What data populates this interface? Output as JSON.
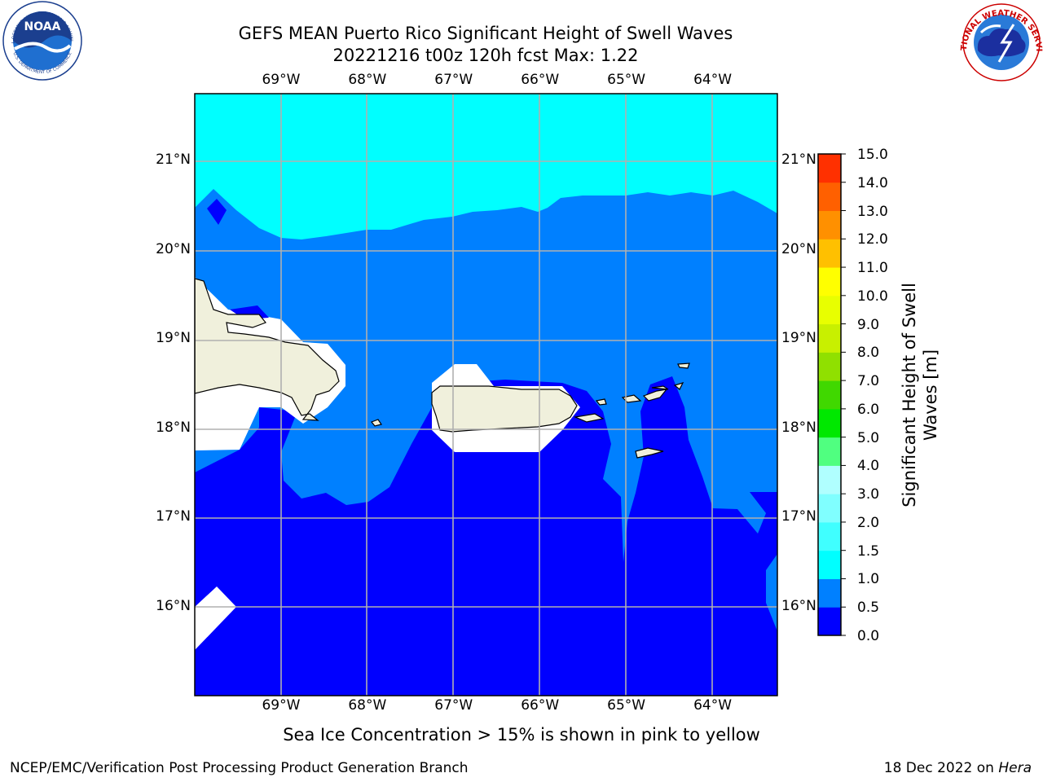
{
  "title": {
    "line1": "GEFS MEAN Puerto Rico Significant Height of Swell Waves",
    "line2": "20221216 t00z 120h fcst   Max: 1.22"
  },
  "axes": {
    "lon_labels": [
      "69°W",
      "68°W",
      "67°W",
      "66°W",
      "65°W",
      "64°W"
    ],
    "lat_labels": [
      "21°N",
      "20°N",
      "19°N",
      "18°N",
      "17°N",
      "16°N"
    ],
    "lon_values": [
      -69,
      -68,
      -67,
      -66,
      -65,
      -64
    ],
    "lat_values": [
      21,
      20,
      19,
      18,
      17,
      16
    ],
    "lon_range": [
      -70.0,
      -63.25
    ],
    "lat_range": [
      15.0,
      21.75
    ],
    "grid": true
  },
  "colorbar": {
    "title": "Significant Height of Swell Waves [m]",
    "title_line1": "Significant Height of Swell",
    "title_line2": "Waves [m]",
    "tick_labels": [
      "0.0",
      "0.5",
      "1.0",
      "1.5",
      "2.0",
      "3.0",
      "4.0",
      "5.0",
      "6.0",
      "7.0",
      "8.0",
      "9.0",
      "10.0",
      "11.0",
      "12.0",
      "13.0",
      "14.0",
      "15.0"
    ],
    "colors": [
      "#0000ff",
      "#0080ff",
      "#00ffff",
      "#40ffff",
      "#80ffff",
      "#b0ffff",
      "#50ff80",
      "#00e800",
      "#40d800",
      "#90e000",
      "#c8f000",
      "#e8ff00",
      "#ffff00",
      "#ffc000",
      "#ff9000",
      "#ff6000",
      "#ff3000",
      "#ff0000"
    ]
  },
  "legend_colors": {
    "swell_0_0_5": "#0000ff",
    "swell_0_5_1_0": "#0080ff",
    "swell_1_0_1_5": "#00ffff",
    "land": "#f0f0dc",
    "no_data": "#ffffff"
  },
  "note": "Sea Ice Concentration > 15% is shown in pink to yellow",
  "footer": {
    "left": "NCEP/EMC/Verification Post Processing Product Generation Branch",
    "right_prefix": "18 Dec 2022 on ",
    "right_machine": "Hera"
  },
  "logos": {
    "noaa_text": "NOAA",
    "noaa_ring": "NATIONAL OCEANIC AND ATMOSPHERIC ADMINISTRATION",
    "noaa_bottom": "U.S. DEPARTMENT OF COMMERCE",
    "nws_ring": "NATIONAL WEATHER SERVICE"
  }
}
